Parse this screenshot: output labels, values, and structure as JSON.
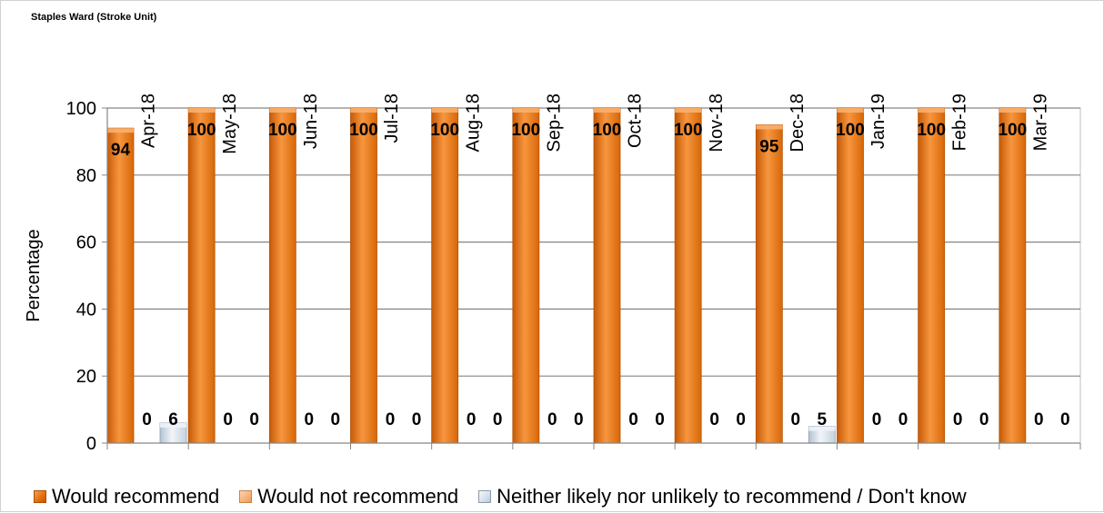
{
  "chart_data": {
    "type": "bar",
    "title": "Staples Ward (Stroke Unit)",
    "xlabel": "",
    "ylabel": "Percentage",
    "ylim": [
      0,
      100
    ],
    "yticks": [
      0,
      20,
      40,
      60,
      80,
      100
    ],
    "grid": true,
    "legend_position": "bottom",
    "categories": [
      "Apr-18",
      "May-18",
      "Jun-18",
      "Jul-18",
      "Aug-18",
      "Sep-18",
      "Oct-18",
      "Nov-18",
      "Dec-18",
      "Jan-19",
      "Feb-19",
      "Mar-19"
    ],
    "series": [
      {
        "name": "Would recommend",
        "color": "#e36c09",
        "values": [
          94,
          100,
          100,
          100,
          100,
          100,
          100,
          100,
          95,
          100,
          100,
          100
        ]
      },
      {
        "name": "Would not recommend",
        "color": "#f6b27a",
        "values": [
          0,
          0,
          0,
          0,
          0,
          0,
          0,
          0,
          0,
          0,
          0,
          0
        ]
      },
      {
        "name": "Neither likely nor unlikely to recommend / Don't know",
        "color": "#d6e0ea",
        "values": [
          6,
          0,
          0,
          0,
          0,
          0,
          0,
          0,
          5,
          0,
          0,
          0
        ]
      }
    ]
  }
}
